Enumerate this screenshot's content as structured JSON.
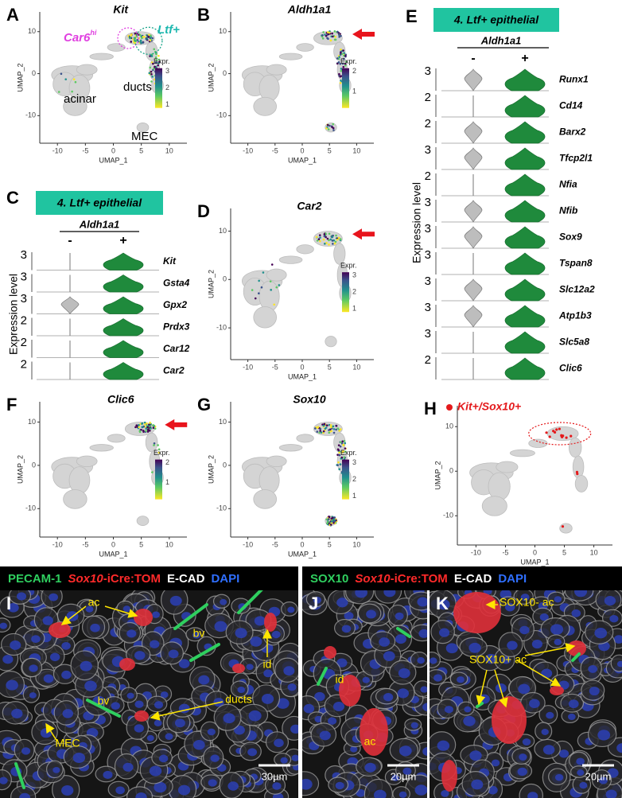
{
  "umap_panels": [
    {
      "label": "A",
      "title": "Kit",
      "legend": {
        "title": "Expr.",
        "ticks": [
          "3",
          "2",
          "1"
        ]
      },
      "x_label": "UMAP_1",
      "y_label": "UMAP_2",
      "x_ticks": [
        "-10",
        "-5",
        "0",
        "5",
        "10"
      ],
      "y_ticks": [
        "10",
        "0",
        "-10"
      ]
    },
    {
      "label": "B",
      "title": "Aldh1a1",
      "legend": {
        "title": "Expr.",
        "ticks": [
          "2",
          "1"
        ]
      },
      "x_label": "UMAP_1",
      "y_label": "UMAP_2",
      "x_ticks": [
        "-10",
        "-5",
        "0",
        "5",
        "10"
      ],
      "y_ticks": [
        "10",
        "0",
        "-10"
      ]
    },
    {
      "label": "D",
      "title": "Car2",
      "legend": {
        "title": "Expr.",
        "ticks": [
          "3",
          "2",
          "1"
        ]
      },
      "x_label": "UMAP_1",
      "y_label": "UMAP_2",
      "x_ticks": [
        "-10",
        "-5",
        "0",
        "5",
        "10"
      ],
      "y_ticks": [
        "10",
        "0",
        "-10"
      ]
    },
    {
      "label": "F",
      "title": "Clic6",
      "legend": {
        "title": "Expr.",
        "ticks": [
          "2",
          "1"
        ]
      },
      "x_label": "UMAP_1",
      "y_label": "UMAP_2",
      "x_ticks": [
        "-10",
        "-5",
        "0",
        "5",
        "10"
      ],
      "y_ticks": [
        "10",
        "0",
        "-10"
      ]
    },
    {
      "label": "G",
      "title": "Sox10",
      "legend": {
        "title": "Expr.",
        "ticks": [
          "3",
          "2",
          "1"
        ]
      },
      "x_label": "UMAP_1",
      "y_label": "UMAP_2",
      "x_ticks": [
        "-10",
        "-5",
        "0",
        "5",
        "10"
      ],
      "y_ticks": [
        "10",
        "0",
        "-10"
      ]
    },
    {
      "label": "H",
      "title": "Kit+/Sox10+",
      "x_label": "UMAP_1",
      "y_label": "UMAP_2",
      "x_ticks": [
        "-10",
        "-5",
        "0",
        "5",
        "10"
      ],
      "y_ticks": [
        "10",
        "0",
        "-10"
      ]
    }
  ],
  "annotations_A": {
    "car6": "Car6",
    "car6_sup": "hi",
    "ltf": "Ltf+",
    "acinar": "acinar",
    "ducts": "ducts",
    "mec": "MEC"
  },
  "violin_panels": [
    {
      "label": "C",
      "header": "4. Ltf+ epithelial",
      "group": "Aldh1a1",
      "neg": "-",
      "pos": "+",
      "y_label": "Expression level",
      "genes": [
        {
          "name": "Kit",
          "max": "3"
        },
        {
          "name": "Gsta4",
          "max": "3"
        },
        {
          "name": "Gpx2",
          "max": "3"
        },
        {
          "name": "Prdx3",
          "max": "2"
        },
        {
          "name": "Car12",
          "max": "2"
        },
        {
          "name": "Car2",
          "max": "2"
        }
      ]
    },
    {
      "label": "E",
      "header": "4. Ltf+ epithelial",
      "group": "Aldh1a1",
      "neg": "-",
      "pos": "+",
      "y_label": "Expression level",
      "genes": [
        {
          "name": "Runx1",
          "max": "3"
        },
        {
          "name": "Cd14",
          "max": "2"
        },
        {
          "name": "Barx2",
          "max": "2"
        },
        {
          "name": "Tfcp2l1",
          "max": "3"
        },
        {
          "name": "Nfia",
          "max": "2"
        },
        {
          "name": "Nfib",
          "max": "3"
        },
        {
          "name": "Sox9",
          "max": "3"
        },
        {
          "name": "Tspan8",
          "max": "3"
        },
        {
          "name": "Slc12a2",
          "max": "3"
        },
        {
          "name": "Atp1b3",
          "max": "3"
        },
        {
          "name": "Slc5a8",
          "max": "3"
        },
        {
          "name": "Clic6",
          "max": "2"
        }
      ]
    }
  ],
  "micrograph_headers": [
    {
      "stain1": "PECAM-1",
      "reporter_gene": "Sox10",
      "reporter": "-iCre:TOM",
      "stain2": "E-CAD",
      "stain3": "DAPI"
    },
    {
      "stain1": "SOX10",
      "reporter_gene": "Sox10",
      "reporter": "-iCre:TOM",
      "stain2": "E-CAD",
      "stain3": "DAPI"
    }
  ],
  "micrographs": [
    {
      "label": "I",
      "scale": "30µm",
      "labels": [
        "ac",
        "bv",
        "id",
        "bv",
        "ducts",
        "MEC"
      ]
    },
    {
      "label": "J",
      "scale": "20µm",
      "labels": [
        "id",
        "ac"
      ]
    },
    {
      "label": "K",
      "scale": "20µm",
      "labels": [
        "SOX10- ac",
        "SOX10+ ac"
      ]
    }
  ]
}
